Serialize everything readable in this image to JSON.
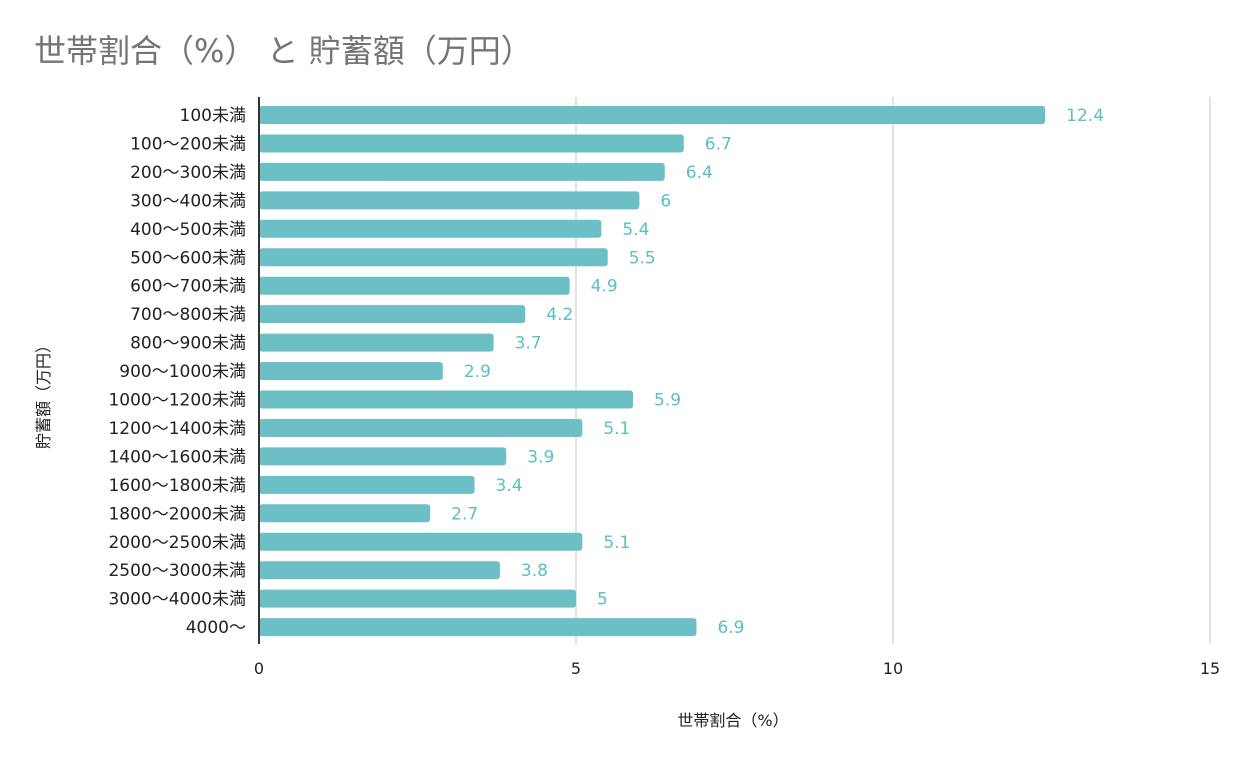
{
  "chart_data": {
    "type": "bar",
    "orientation": "horizontal",
    "title": "世帯割合（%） と 貯蓄額（万円）",
    "xlabel": "世帯割合（%）",
    "ylabel": "貯蓄額（万円）",
    "xlim": [
      0,
      15
    ],
    "xticks": [
      0,
      5,
      10,
      15
    ],
    "grid": true,
    "bar_color": "#6cbfc4",
    "label_color": "#5bbfc3",
    "categories": [
      "100未満",
      "100〜200未満",
      "200〜300未満",
      "300〜400未満",
      "400〜500未満",
      "500〜600未満",
      "600〜700未満",
      "700〜800未満",
      "800〜900未満",
      "900〜1000未満",
      "1000〜1200未満",
      "1200〜1400未満",
      "1400〜1600未満",
      "1600〜1800未満",
      "1800〜2000未満",
      "2000〜2500未満",
      "2500〜3000未満",
      "3000〜4000未満",
      "4000〜"
    ],
    "values": [
      12.4,
      6.7,
      6.4,
      6,
      5.4,
      5.5,
      4.9,
      4.2,
      3.7,
      2.9,
      5.9,
      5.1,
      3.9,
      3.4,
      2.7,
      5.1,
      3.8,
      5,
      6.9
    ],
    "value_labels": [
      "12.4",
      "6.7",
      "6.4",
      "6",
      "5.4",
      "5.5",
      "4.9",
      "4.2",
      "3.7",
      "2.9",
      "5.9",
      "5.1",
      "3.9",
      "3.4",
      "2.7",
      "5.1",
      "3.8",
      "5",
      "6.9"
    ]
  }
}
